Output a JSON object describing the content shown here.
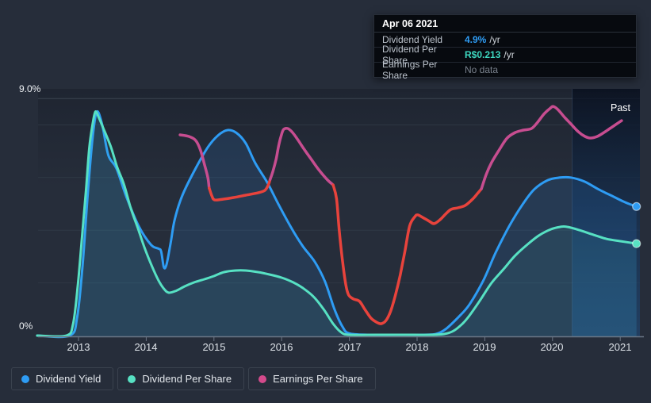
{
  "page": {
    "background": "#262d3a"
  },
  "tooltip": {
    "date": "Apr 06 2021",
    "rows": [
      {
        "label": "Dividend Yield",
        "value": "4.9%",
        "suffix": "/yr",
        "color": "#2f9df5"
      },
      {
        "label": "Dividend Per Share",
        "value": "R$0.213",
        "suffix": "/yr",
        "color": "#3ed8c0"
      },
      {
        "label": "Earnings Per Share",
        "value": "No data",
        "suffix": "",
        "color": "#79818c"
      }
    ]
  },
  "legend": {
    "items": [
      {
        "label": "Dividend Yield",
        "color": "#2e9cf4"
      },
      {
        "label": "Dividend Per Share",
        "color": "#57e1c3"
      },
      {
        "label": "Earnings Per Share",
        "color": "#d44a8c"
      }
    ]
  },
  "chart_data": {
    "type": "line",
    "x_tick_labels": [
      "2013",
      "2014",
      "2015",
      "2016",
      "2017",
      "2018",
      "2019",
      "2020",
      "2021"
    ],
    "x_ticks_years": [
      2013,
      2014,
      2015,
      2016,
      2017,
      2018,
      2019,
      2020,
      2021
    ],
    "x_range_years": [
      2012.39,
      2021.36
    ],
    "y_axis": {
      "top_label": "9.0%",
      "bottom_label": "0%",
      "min_pct": 0,
      "max_pct": 9,
      "gridlines_pct": [
        2,
        4,
        6,
        8,
        9
      ]
    },
    "past_label": "Past",
    "past_region_start_year": 2020.29,
    "grid_on": true,
    "legend_position": "bottom-left",
    "series": [
      {
        "name": "Dividend Yield",
        "unit": "%",
        "color": "#2e9cf4",
        "area_color": "rgba(45,130,215,0.16)",
        "width": 3,
        "end_dot": true,
        "points": [
          [
            2012.39,
            0
          ],
          [
            2012.87,
            0
          ],
          [
            2012.98,
            0.7
          ],
          [
            2013.06,
            2.65
          ],
          [
            2013.14,
            5.5
          ],
          [
            2013.21,
            7.55
          ],
          [
            2013.27,
            8.5
          ],
          [
            2013.35,
            8.0
          ],
          [
            2013.44,
            6.85
          ],
          [
            2013.56,
            6.35
          ],
          [
            2013.71,
            5.25
          ],
          [
            2013.89,
            4.15
          ],
          [
            2014.07,
            3.45
          ],
          [
            2014.18,
            3.3
          ],
          [
            2014.22,
            3.2
          ],
          [
            2014.26,
            2.6
          ],
          [
            2014.3,
            2.7
          ],
          [
            2014.36,
            3.5
          ],
          [
            2014.42,
            4.4
          ],
          [
            2014.53,
            5.3
          ],
          [
            2014.71,
            6.25
          ],
          [
            2014.91,
            7.15
          ],
          [
            2015.06,
            7.6
          ],
          [
            2015.2,
            7.8
          ],
          [
            2015.33,
            7.7
          ],
          [
            2015.47,
            7.3
          ],
          [
            2015.61,
            6.55
          ],
          [
            2015.79,
            5.8
          ],
          [
            2015.96,
            4.95
          ],
          [
            2016.14,
            4.1
          ],
          [
            2016.31,
            3.4
          ],
          [
            2016.49,
            2.8
          ],
          [
            2016.64,
            2.05
          ],
          [
            2016.78,
            1.0
          ],
          [
            2016.9,
            0.33
          ],
          [
            2017.0,
            0.08
          ],
          [
            2017.3,
            0.03
          ],
          [
            2017.7,
            0.03
          ],
          [
            2018.1,
            0.03
          ],
          [
            2018.28,
            0.06
          ],
          [
            2018.42,
            0.24
          ],
          [
            2018.61,
            0.7
          ],
          [
            2018.77,
            1.17
          ],
          [
            2018.98,
            2.1
          ],
          [
            2019.16,
            3.15
          ],
          [
            2019.36,
            4.15
          ],
          [
            2019.55,
            4.95
          ],
          [
            2019.73,
            5.55
          ],
          [
            2019.93,
            5.9
          ],
          [
            2020.11,
            6.0
          ],
          [
            2020.27,
            6.0
          ],
          [
            2020.47,
            5.85
          ],
          [
            2020.68,
            5.55
          ],
          [
            2020.88,
            5.3
          ],
          [
            2021.08,
            5.05
          ],
          [
            2021.24,
            4.9
          ]
        ]
      },
      {
        "name": "Dividend Per Share",
        "unit": "R$ (scaled)",
        "color": "#57e1c3",
        "area_color": "rgba(85,225,195,0.07)",
        "width": 3,
        "end_dot": true,
        "points": [
          [
            2012.39,
            0
          ],
          [
            2012.82,
            0
          ],
          [
            2012.92,
            0.45
          ],
          [
            2012.99,
            1.9
          ],
          [
            2013.05,
            3.7
          ],
          [
            2013.11,
            5.5
          ],
          [
            2013.16,
            7.15
          ],
          [
            2013.21,
            8.05
          ],
          [
            2013.25,
            8.5
          ],
          [
            2013.3,
            8.28
          ],
          [
            2013.37,
            7.85
          ],
          [
            2013.48,
            7.15
          ],
          [
            2013.57,
            6.4
          ],
          [
            2013.67,
            5.75
          ],
          [
            2013.77,
            4.85
          ],
          [
            2013.88,
            4.05
          ],
          [
            2013.98,
            3.3
          ],
          [
            2014.09,
            2.6
          ],
          [
            2014.18,
            2.1
          ],
          [
            2014.26,
            1.78
          ],
          [
            2014.33,
            1.63
          ],
          [
            2014.44,
            1.7
          ],
          [
            2014.57,
            1.87
          ],
          [
            2014.71,
            2.02
          ],
          [
            2014.86,
            2.14
          ],
          [
            2015.0,
            2.26
          ],
          [
            2015.15,
            2.41
          ],
          [
            2015.32,
            2.47
          ],
          [
            2015.47,
            2.47
          ],
          [
            2015.65,
            2.41
          ],
          [
            2015.82,
            2.32
          ],
          [
            2016.0,
            2.2
          ],
          [
            2016.17,
            2.02
          ],
          [
            2016.31,
            1.81
          ],
          [
            2016.47,
            1.48
          ],
          [
            2016.62,
            1.0
          ],
          [
            2016.76,
            0.45
          ],
          [
            2016.88,
            0.12
          ],
          [
            2017.0,
            0.03
          ],
          [
            2017.4,
            0.03
          ],
          [
            2017.8,
            0.03
          ],
          [
            2018.2,
            0.03
          ],
          [
            2018.4,
            0.06
          ],
          [
            2018.54,
            0.18
          ],
          [
            2018.67,
            0.45
          ],
          [
            2018.77,
            0.75
          ],
          [
            2018.92,
            1.3
          ],
          [
            2019.1,
            2.0
          ],
          [
            2019.28,
            2.53
          ],
          [
            2019.45,
            3.04
          ],
          [
            2019.63,
            3.46
          ],
          [
            2019.8,
            3.8
          ],
          [
            2019.98,
            4.04
          ],
          [
            2020.12,
            4.13
          ],
          [
            2020.21,
            4.13
          ],
          [
            2020.39,
            4.01
          ],
          [
            2020.6,
            3.83
          ],
          [
            2020.8,
            3.67
          ],
          [
            2021.01,
            3.58
          ],
          [
            2021.24,
            3.49
          ]
        ]
      },
      {
        "name": "Earnings Per Share",
        "unit": "R$ (scaled)",
        "color": "#c74d90",
        "negative_color": "#e8433c",
        "width": 3.5,
        "end_dot": false,
        "segments": [
          {
            "color": "#c74d90",
            "points": [
              [
                2014.5,
                7.62
              ],
              [
                2014.63,
                7.56
              ],
              [
                2014.73,
                7.41
              ],
              [
                2014.8,
                7.05
              ],
              [
                2014.86,
                6.5
              ],
              [
                2014.91,
                6.0
              ],
              [
                2014.93,
                5.6
              ]
            ]
          },
          {
            "color": "#e8433c",
            "points": [
              [
                2014.93,
                5.6
              ],
              [
                2014.97,
                5.3
              ],
              [
                2015.01,
                5.15
              ],
              [
                2015.14,
                5.18
              ],
              [
                2015.29,
                5.24
              ],
              [
                2015.47,
                5.33
              ],
              [
                2015.65,
                5.42
              ],
              [
                2015.75,
                5.51
              ],
              [
                2015.8,
                5.7
              ],
              [
                2015.83,
                5.93
              ]
            ]
          },
          {
            "color": "#c74d90",
            "points": [
              [
                2015.83,
                5.93
              ],
              [
                2015.87,
                6.23
              ],
              [
                2015.92,
                6.72
              ],
              [
                2015.96,
                7.26
              ],
              [
                2016.0,
                7.65
              ],
              [
                2016.03,
                7.83
              ],
              [
                2016.09,
                7.86
              ],
              [
                2016.15,
                7.74
              ],
              [
                2016.23,
                7.47
              ],
              [
                2016.33,
                7.08
              ],
              [
                2016.43,
                6.72
              ],
              [
                2016.55,
                6.29
              ],
              [
                2016.67,
                5.93
              ],
              [
                2016.76,
                5.72
              ]
            ]
          },
          {
            "color": "#e8433c",
            "points": [
              [
                2016.76,
                5.72
              ],
              [
                2016.81,
                5.2
              ],
              [
                2016.85,
                4.0
              ],
              [
                2016.9,
                2.8
              ],
              [
                2016.95,
                1.9
              ],
              [
                2016.99,
                1.54
              ],
              [
                2017.06,
                1.39
              ],
              [
                2017.15,
                1.3
              ],
              [
                2017.23,
                0.99
              ],
              [
                2017.32,
                0.66
              ],
              [
                2017.4,
                0.51
              ],
              [
                2017.47,
                0.45
              ],
              [
                2017.54,
                0.57
              ],
              [
                2017.61,
                0.93
              ],
              [
                2017.68,
                1.54
              ],
              [
                2017.75,
                2.29
              ],
              [
                2017.82,
                3.19
              ],
              [
                2017.89,
                4.16
              ],
              [
                2017.97,
                4.52
              ],
              [
                2018.01,
                4.58
              ],
              [
                2018.08,
                4.49
              ],
              [
                2018.18,
                4.34
              ],
              [
                2018.25,
                4.25
              ],
              [
                2018.34,
                4.4
              ],
              [
                2018.42,
                4.61
              ],
              [
                2018.5,
                4.79
              ],
              [
                2018.6,
                4.85
              ],
              [
                2018.71,
                4.94
              ],
              [
                2018.82,
                5.18
              ],
              [
                2018.9,
                5.42
              ],
              [
                2018.95,
                5.57
              ]
            ]
          },
          {
            "color": "#c74d90",
            "points": [
              [
                2018.95,
                5.57
              ],
              [
                2019.02,
                6.11
              ],
              [
                2019.1,
                6.57
              ],
              [
                2019.22,
                7.08
              ],
              [
                2019.33,
                7.5
              ],
              [
                2019.45,
                7.71
              ],
              [
                2019.57,
                7.8
              ],
              [
                2019.69,
                7.86
              ],
              [
                2019.78,
                8.1
              ],
              [
                2019.88,
                8.43
              ],
              [
                2019.97,
                8.64
              ],
              [
                2020.01,
                8.7
              ],
              [
                2020.08,
                8.58
              ],
              [
                2020.18,
                8.28
              ],
              [
                2020.27,
                8.04
              ],
              [
                2020.38,
                7.74
              ],
              [
                2020.48,
                7.56
              ],
              [
                2020.56,
                7.5
              ],
              [
                2020.66,
                7.56
              ],
              [
                2020.76,
                7.71
              ],
              [
                2020.88,
                7.92
              ],
              [
                2021.02,
                8.16
              ]
            ]
          }
        ]
      }
    ]
  }
}
